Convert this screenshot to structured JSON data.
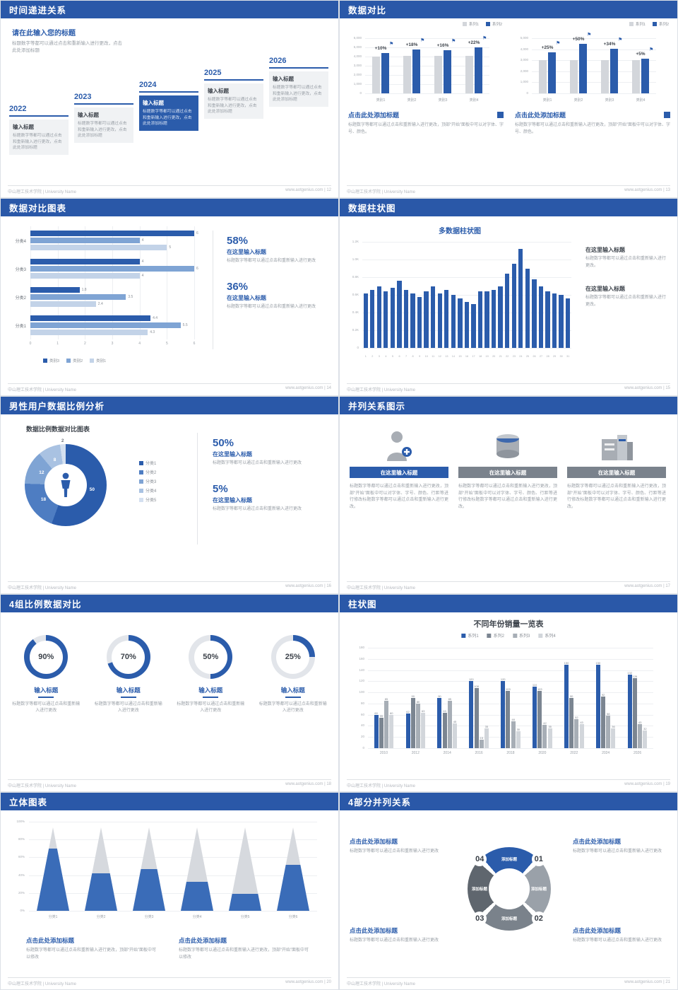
{
  "ui": {
    "footer_left": "中山理工技术学院 | University Name",
    "site": "www.aotgenius.com"
  },
  "colors": {
    "primary": "#2b5cab",
    "bar_gray": "#d3d6db",
    "s14_series": [
      "#2b5cab",
      "#7fa4d4",
      "#c3d3e8"
    ],
    "s19_series": [
      "#2b5cab",
      "#7b8591",
      "#a7aeb6",
      "#d2d6db"
    ],
    "donut": [
      "#2b5cab",
      "#4e7dc2",
      "#7fa4d4",
      "#a9c2e2",
      "#d4e0f0"
    ],
    "diagram_segments": [
      "#2b5cab",
      "#9aa1a9",
      "#7a828b",
      "#5f666e"
    ]
  },
  "slides": {
    "s12": {
      "title": "时间递进关系",
      "page": "12",
      "intro_title": "请在此输入您的标题",
      "intro_body": "标题数字等都可以通过点击和重新输入进行更改，点击此处添加标题",
      "steps": [
        {
          "year": "2022",
          "label": "输入标题",
          "body": "标题数字等都可以通过点击和重新输入进行更改，点击此处添加标题",
          "highlight": false
        },
        {
          "year": "2023",
          "label": "输入标题",
          "body": "标题数字等都可以通过点击和重新输入进行更改，点击此处添加标题",
          "highlight": false
        },
        {
          "year": "2024",
          "label": "输入标题",
          "body": "标题数字等都可以通过点击和重新输入进行更改，点击此处添加标题",
          "highlight": true
        },
        {
          "year": "2025",
          "label": "输入标题",
          "body": "标题数字等都可以通过点击和重新输入进行更改，点击此处添加标题",
          "highlight": false
        },
        {
          "year": "2026",
          "label": "输入标题",
          "body": "标题数字等都可以通过点击和重新输入进行更改，点击此处添加标题",
          "highlight": false
        }
      ]
    },
    "s13": {
      "title": "数据对比",
      "page": "13",
      "panels": [
        {
          "heading": "点击此处添加标题",
          "body": "标题数字等都可以通过点击和重新输入进行更改，顶部“开始”面板中可以对字体、字号、颜色。"
        },
        {
          "heading": "点击此处添加标题",
          "body": "标题数字等都可以通过点击和重新输入进行更改，顶部“开始”面板中可以对字体、字号、颜色。"
        }
      ]
    },
    "s14": {
      "title": "数据对比图表",
      "page": "14",
      "stats": [
        {
          "pct": "58%",
          "label": "在这里输入标题",
          "body": "标题数字等都可以通过点击和重新输入进行更改"
        },
        {
          "pct": "36%",
          "label": "在这里输入标题",
          "body": "标题数字等都可以通过点击和重新输入进行更改"
        }
      ]
    },
    "s15": {
      "title": "数据柱状图",
      "page": "15",
      "blocks": [
        {
          "label": "在这里输入标题",
          "body": "标题数字等都可以通过点击和重新输入进行更改。"
        },
        {
          "label": "在这里输入标题",
          "body": "标题数字等都可以通过点击和重新输入进行更改。"
        }
      ]
    },
    "s16": {
      "title": "男性用户数据比例分析",
      "page": "16",
      "stats": [
        {
          "pct": "50%",
          "label": "在这里输入标题",
          "body": "标题数字等都可以通过点击和重新输入进行更改"
        },
        {
          "pct": "5%",
          "label": "在这里输入标题",
          "body": "标题数字等都可以通过点击和重新输入进行更改"
        }
      ]
    },
    "s17": {
      "title": "并列关系图示",
      "page": "17",
      "items": [
        {
          "icon": "nurse-icon",
          "heading": "在这里输入标题",
          "body": "标题数字等都可以通过点击和重新输入进行更改，顶部“开始”面板中可以对字体、字号、颜色、行距等进行修改标题数字等都可以通过点击和重新输入进行更改。"
        },
        {
          "icon": "cylinder-icon",
          "heading": "在这里输入标题",
          "body": "标题数字等都可以通过点击和重新输入进行更改，顶部“开始”面板中可以对字体、字号、颜色、行距等进行修改标题数字等都可以通过点击和重新输入进行更改。"
        },
        {
          "icon": "building-icon",
          "heading": "在这里输入标题",
          "body": "标题数字等都可以通过点击和重新输入进行更改，顶部“开始”面板中可以对字体、字号、颜色、行距等进行修改标题数字等都可以通过点击和重新输入进行更改。"
        }
      ]
    },
    "s18": {
      "title": "4组比例数据对比",
      "page": "18",
      "items": [
        {
          "pct": "90%",
          "label": "输入标题",
          "body": "标题数字等都可以通过点击和重新输入进行更改"
        },
        {
          "pct": "70%",
          "label": "输入标题",
          "body": "标题数字等都可以通过点击和重新输入进行更改"
        },
        {
          "pct": "50%",
          "label": "输入标题",
          "body": "标题数字等都可以通过点击和重新输入进行更改"
        },
        {
          "pct": "25%",
          "label": "输入标题",
          "body": "标题数字等都可以通过点击和重新输入进行更改"
        }
      ]
    },
    "s19": {
      "title": "柱状图",
      "page": "19"
    },
    "s20": {
      "title": "立体图表",
      "page": "20",
      "blocks": [
        {
          "heading": "点击此处添加标题",
          "body": "标题数字等都可以通过点击和重新输入进行更改，顶部“开始”面板中可以修改"
        },
        {
          "heading": "点击此处添加标题",
          "body": "标题数字等都可以通过点击和重新输入进行更改，顶部“开始”面板中可以修改"
        }
      ]
    },
    "s21": {
      "title": "4部分并列关系",
      "page": "21",
      "seg_label": "添加标题",
      "parts": [
        {
          "num": "01"
        },
        {
          "num": "02"
        },
        {
          "num": "03"
        },
        {
          "num": "04"
        }
      ],
      "blocks": [
        {
          "heading": "点击此处添加标题",
          "body": "标题数字等都可以通过点击和重新输入进行更改"
        },
        {
          "heading": "点击此处添加标题",
          "body": "标题数字等都可以通过点击和重新输入进行更改"
        },
        {
          "heading": "点击此处添加标题",
          "body": "标题数字等都可以通过点击和重新输入进行更改"
        },
        {
          "heading": "点击此处添加标题",
          "body": "标题数字等都可以通过点击和重新输入进行更改"
        }
      ]
    }
  },
  "chart_data": [
    {
      "id": "s13-left",
      "type": "bar",
      "categories": [
        "类别1",
        "类别2",
        "类别3",
        "类别4"
      ],
      "series": [
        {
          "name": "系列1",
          "values": [
            4000,
            4050,
            4050,
            4100
          ]
        },
        {
          "name": "系列2",
          "values": [
            4400,
            4780,
            4700,
            5000
          ]
        }
      ],
      "growth_labels": [
        "+10%",
        "+18%",
        "+16%",
        "+22%"
      ],
      "ylim": [
        0,
        6000
      ],
      "yticks": [
        "6,000",
        "5,000",
        "4,000",
        "3,000",
        "2,000",
        "1,000",
        "0"
      ],
      "legend": [
        "系列1",
        "系列2"
      ]
    },
    {
      "id": "s13-right",
      "type": "bar",
      "categories": [
        "类别1",
        "类别2",
        "类别3",
        "类别4"
      ],
      "series": [
        {
          "name": "系列1",
          "values": [
            3000,
            3000,
            3000,
            3000
          ]
        },
        {
          "name": "系列2",
          "values": [
            3750,
            4500,
            4020,
            3150
          ]
        }
      ],
      "growth_labels": [
        "+25%",
        "+50%",
        "+34%",
        "+5%"
      ],
      "ylim": [
        0,
        5000
      ],
      "yticks": [
        "5,000",
        "4,000",
        "3,000",
        "2,000",
        "1,000",
        "0"
      ],
      "legend": [
        "系列1",
        "系列2"
      ]
    },
    {
      "id": "s14",
      "type": "bar",
      "orientation": "horizontal",
      "categories": [
        "分类4",
        "分类3",
        "分类2",
        "分类1"
      ],
      "series": [
        {
          "name": "类别3",
          "values": [
            6,
            4,
            1.8,
            4.4
          ]
        },
        {
          "name": "类别2",
          "values": [
            4,
            6,
            3.5,
            5.5
          ]
        },
        {
          "name": "类别1",
          "values": [
            5,
            4,
            2.4,
            4.3
          ]
        }
      ],
      "xlim": [
        0,
        6
      ],
      "xticks": [
        0,
        1,
        2,
        3,
        4,
        5,
        6
      ],
      "legend": [
        "类别3",
        "类别2",
        "类别1"
      ]
    },
    {
      "id": "s15",
      "type": "bar",
      "title": "多数据柱状图",
      "x": [
        "1",
        "2",
        "3",
        "4",
        "5",
        "6",
        "7",
        "8",
        "9",
        "10",
        "11",
        "12",
        "13",
        "14",
        "15",
        "16",
        "17",
        "18",
        "19",
        "20",
        "21",
        "22",
        "23",
        "24",
        "25",
        "26",
        "27",
        "28",
        "29",
        "30",
        "31"
      ],
      "values": [
        620,
        660,
        700,
        640,
        680,
        760,
        660,
        620,
        580,
        640,
        700,
        620,
        660,
        600,
        560,
        520,
        500,
        640,
        640,
        660,
        700,
        840,
        950,
        1120,
        900,
        780,
        700,
        640,
        620,
        600,
        560
      ],
      "ylim": [
        0,
        1200
      ],
      "yticks": [
        "1.2K",
        "1.0K",
        "0.8K",
        "0.6K",
        "0.4K",
        "0.2K",
        "0"
      ]
    },
    {
      "id": "s16",
      "type": "pie",
      "title": "数据比例数据对比图表",
      "labels": [
        "分类1",
        "分类2",
        "分类3",
        "分类4",
        "分类5"
      ],
      "values": [
        50,
        18,
        12,
        8,
        2
      ],
      "show_values": [
        "50",
        "18",
        "12",
        "8",
        "2"
      ]
    },
    {
      "id": "s18",
      "type": "donut-progress",
      "values": [
        90,
        70,
        50,
        25
      ]
    },
    {
      "id": "s19",
      "type": "bar",
      "title": "不同年份销量一览表",
      "categories": [
        "2010",
        "2012",
        "2014",
        "2016",
        "2018",
        "2020",
        "2022",
        "2024",
        "2026"
      ],
      "series": [
        {
          "name": "系列1",
          "values": [
            60,
            62,
            90,
            120,
            120,
            110,
            150,
            150,
            132
          ]
        },
        {
          "name": "系列2",
          "values": [
            55,
            90,
            63,
            108,
            103,
            103,
            90,
            92,
            126
          ]
        },
        {
          "name": "系列3",
          "values": [
            85,
            80,
            85,
            15,
            48,
            42,
            52,
            58,
            43
          ]
        },
        {
          "name": "系列4",
          "values": [
            60,
            63,
            45,
            35,
            30,
            35,
            43,
            36,
            32
          ]
        }
      ],
      "ylim": [
        0,
        180
      ],
      "yticks": [
        180,
        160,
        140,
        120,
        100,
        80,
        60,
        40,
        20,
        0
      ],
      "legend": [
        "系列1",
        "系列2",
        "系列3",
        "系列4"
      ]
    },
    {
      "id": "s20",
      "type": "bar",
      "variant": "cone-3d",
      "categories": [
        "分类1",
        "分类2",
        "分类3",
        "分类4",
        "分类5",
        "分类6"
      ],
      "values": [
        75,
        45,
        50,
        35,
        20,
        55
      ],
      "ylim": [
        0,
        100
      ],
      "yticks": [
        "100%",
        "80%",
        "60%",
        "40%",
        "20%",
        "0%"
      ]
    }
  ]
}
